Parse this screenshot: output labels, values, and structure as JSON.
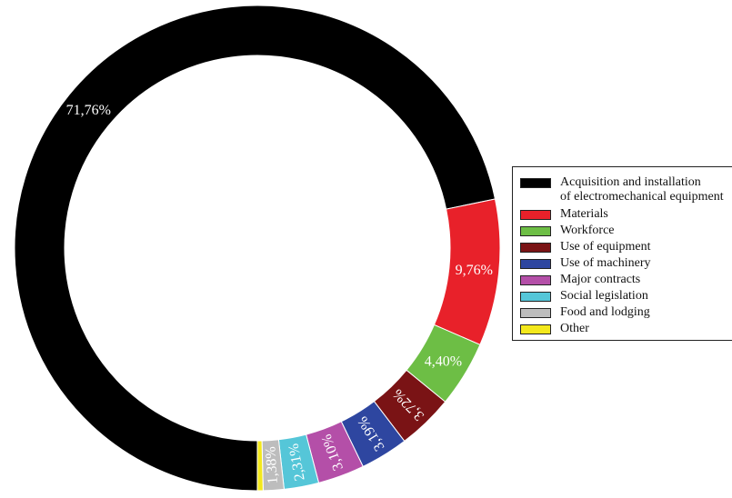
{
  "chart_data": {
    "type": "pie",
    "variant": "donut",
    "title": "",
    "slices": [
      {
        "label_lines": [
          "Acquisition and installation",
          "of electromechanical equipment"
        ],
        "value": 71.76,
        "value_label": "71,76%",
        "color": "#000000"
      },
      {
        "label_lines": [
          "Materials"
        ],
        "value": 9.76,
        "value_label": "9,76%",
        "color": "#e8212a"
      },
      {
        "label_lines": [
          "Workforce"
        ],
        "value": 4.4,
        "value_label": "4,40%",
        "color": "#6dbe45"
      },
      {
        "label_lines": [
          "Use of equipment"
        ],
        "value": 3.72,
        "value_label": "3,72%",
        "color": "#7a1315"
      },
      {
        "label_lines": [
          "Use of machinery"
        ],
        "value": 3.19,
        "value_label": "3,19%",
        "color": "#2e46a0"
      },
      {
        "label_lines": [
          "Major contracts"
        ],
        "value": 3.1,
        "value_label": "3,10%",
        "color": "#b44fa8"
      },
      {
        "label_lines": [
          "Social legislation"
        ],
        "value": 2.31,
        "value_label": "2,31%",
        "color": "#55c6d8"
      },
      {
        "label_lines": [
          "Food and lodging"
        ],
        "value": 1.38,
        "value_label": "1,38%",
        "color": "#bdbdbd"
      },
      {
        "label_lines": [
          "Other"
        ],
        "value": 0.38,
        "value_label": "",
        "color": "#f3e81c"
      }
    ],
    "legend_position": "right"
  }
}
